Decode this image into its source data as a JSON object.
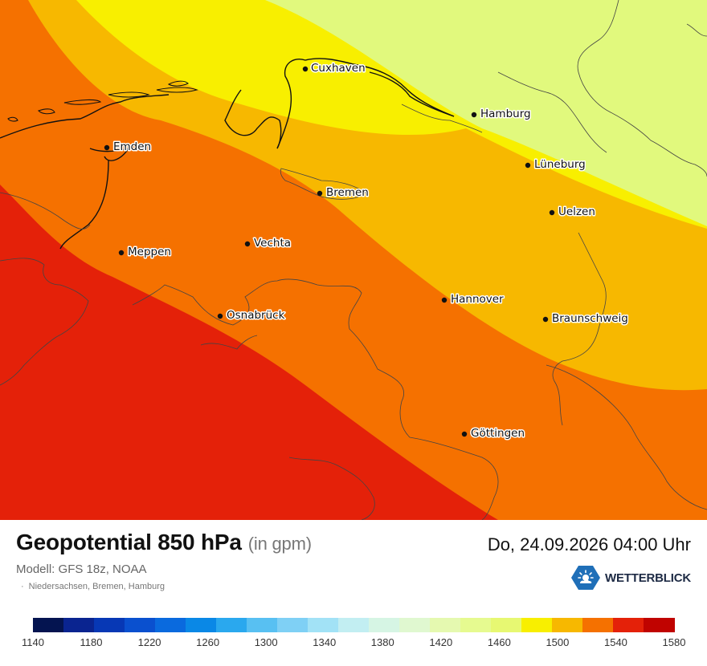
{
  "map": {
    "cities": [
      {
        "name": "Cuxhaven"
      },
      {
        "name": "Hamburg"
      },
      {
        "name": "Emden"
      },
      {
        "name": "Lüneburg"
      },
      {
        "name": "Bremen"
      },
      {
        "name": "Uelzen"
      },
      {
        "name": "Vechta"
      },
      {
        "name": "Meppen"
      },
      {
        "name": "Hannover"
      },
      {
        "name": "Osnabrück"
      },
      {
        "name": "Braunschweig"
      },
      {
        "name": "Göttingen"
      }
    ],
    "band_colors": [
      "#e42109",
      "#f57100",
      "#f7b800",
      "#f8ef00",
      "#e1f97d"
    ],
    "band_values_gpm": [
      1540,
      1520,
      1500,
      1480,
      1460
    ]
  },
  "header": {
    "title": "Geopotential 850 hPa",
    "unit": "(in gpm)",
    "datetime": "Do, 24.09.2026 04:00 Uhr",
    "model": "Modell: GFS 18z, NOAA",
    "region": "Niedersachsen, Bremen, Hamburg",
    "brand": "WETTERBLICK",
    "brand_icon": "sun-cloud-icon"
  },
  "legend": {
    "ticks": [
      "1140",
      "1180",
      "1220",
      "1260",
      "1300",
      "1340",
      "1380",
      "1420",
      "1460",
      "1500",
      "1540",
      "1580"
    ],
    "colors": [
      "#041450",
      "#0a2490",
      "#0738b5",
      "#0a50cf",
      "#0a6ade",
      "#0a88e6",
      "#2aa8ee",
      "#58c0f2",
      "#7fd0f5",
      "#a2e2f6",
      "#c2eef2",
      "#d6f5e4",
      "#e0f8d0",
      "#e5f9b0",
      "#e6fa90",
      "#e7f872",
      "#f8ef00",
      "#f7b800",
      "#f57100",
      "#e42109",
      "#c00300"
    ]
  }
}
